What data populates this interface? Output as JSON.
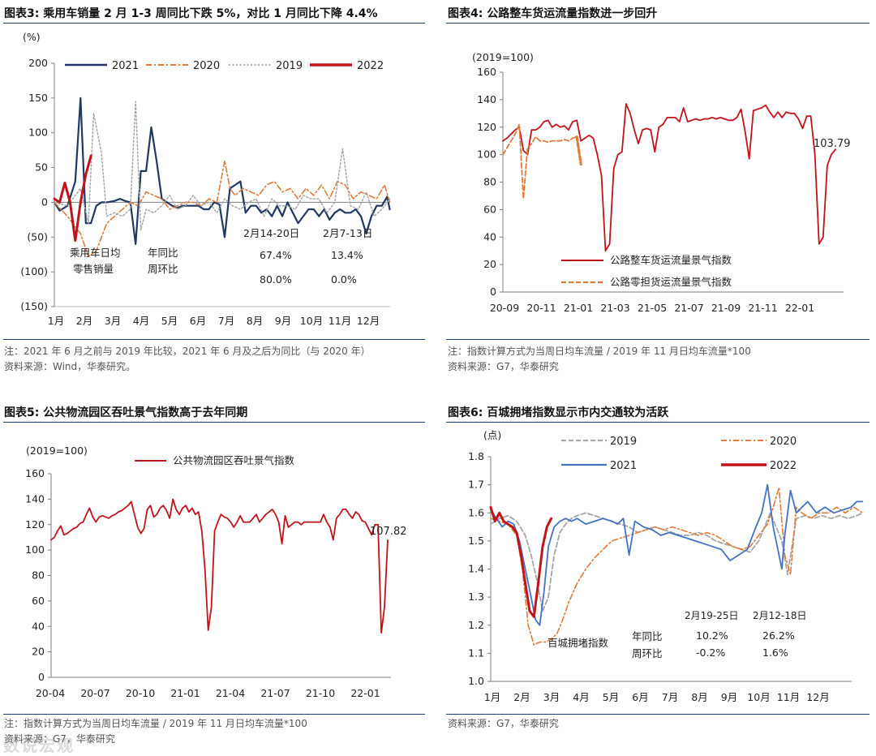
{
  "watermark": "数说宏观",
  "panels": [
    {
      "title": "图表3:  乘用车销量 2 月 1-3 周同比下跌 5%，对比 1 月同比下降 4.4%",
      "notes": [
        "注：2021 年 6 月之前与 2019 年比较，2021 年 6 月及之后为同比（与 2020 年）",
        "资料来源：Wind，华泰研究。"
      ]
    },
    {
      "title": "图表4:  公路整车货运流量指数进一步回升",
      "notes": [
        "注：指数计算方式为当周日均车流量  / 2019 年 11 月日均车流量*100",
        "资料来源：G7，华泰研究"
      ]
    },
    {
      "title": "图表5:  公共物流园区吞吐景气指数高于去年同期",
      "notes": [
        "注：指数计算方式为当周日均车流量  / 2019 年 11 月日均车流量*100",
        "资料来源：G7，华泰研究"
      ]
    },
    {
      "title": "图表6:  百城拥堵指数显示市内交通较为活跃",
      "notes": [
        "资料来源：G7，华泰研究"
      ]
    }
  ],
  "colors": {
    "c2021": "#1f3864",
    "c2020": "#e07b39",
    "c2019": "#a6a6a6",
    "c2022": "#c0141b",
    "red": "#c0141b",
    "orange": "#e07b39",
    "blue": "#4472c4",
    "gray": "#a6a6a6",
    "axis": "#7f7f7f",
    "rule": "#1c3d6e"
  },
  "chart_data": [
    {
      "type": "line",
      "unit": "(%)",
      "yticks": [
        "200",
        "150",
        "100",
        "50",
        "0",
        "(50)",
        "(100)",
        "(150)"
      ],
      "ylim": [
        -150,
        200
      ],
      "xticks": [
        "1月",
        "2月",
        "3月",
        "4月",
        "5月",
        "6月",
        "7月",
        "8月",
        "9月",
        "10月",
        "11月",
        "12月"
      ],
      "xlim": [
        0,
        13
      ],
      "legend": [
        "2021",
        "2020",
        "2019",
        "2022"
      ],
      "series": [
        {
          "name": "2021",
          "x": [
            0,
            0.2,
            0.5,
            0.8,
            1.0,
            1.2,
            1.4,
            1.6,
            1.8,
            2.0,
            2.3,
            2.5,
            2.7,
            2.9,
            3.1,
            3.3,
            3.5,
            3.7,
            3.9,
            4.1,
            4.3,
            4.5,
            4.7,
            4.9,
            5.1,
            5.3,
            5.5,
            5.7,
            5.9,
            6.1,
            6.3,
            6.5,
            6.7,
            6.9,
            7.1,
            7.3,
            7.5,
            7.7,
            7.9,
            8.1,
            8.3,
            8.5,
            8.7,
            8.9,
            9.1,
            9.3,
            9.5,
            9.7,
            9.9,
            10.1,
            10.3,
            10.5,
            10.7,
            10.9,
            11.1,
            11.3,
            11.5,
            11.7,
            11.9,
            12.1,
            12.3,
            12.5,
            12.7,
            12.8
          ],
          "values": [
            0,
            -12,
            -5,
            30,
            150,
            -30,
            -30,
            -5,
            0,
            0,
            2,
            5,
            2,
            0,
            -60,
            45,
            45,
            108,
            60,
            5,
            0,
            -5,
            -8,
            -5,
            -5,
            -5,
            -5,
            -10,
            -10,
            0,
            -3,
            -50,
            20,
            25,
            30,
            -15,
            -5,
            -5,
            -15,
            -10,
            -20,
            -5,
            -20,
            0,
            -15,
            -30,
            -20,
            -10,
            -10,
            -20,
            -10,
            -25,
            -15,
            -10,
            -15,
            -15,
            -10,
            -20,
            -45,
            -20,
            -5,
            -5,
            8,
            -10
          ]
        },
        {
          "name": "2020",
          "x": [
            0,
            0.5,
            1.0,
            1.3,
            1.6,
            1.8,
            2.0,
            2.3,
            2.6,
            2.9,
            3.2,
            3.5,
            3.8,
            4.1,
            4.4,
            4.7,
            5.0,
            5.3,
            5.6,
            5.9,
            6.2,
            6.5,
            6.7,
            6.9,
            7.2,
            7.5,
            7.8,
            8.1,
            8.4,
            8.7,
            9.0,
            9.3,
            9.6,
            9.9,
            10.2,
            10.5,
            10.8,
            11.1,
            11.4,
            11.7,
            12.0,
            12.3,
            12.6,
            12.8
          ],
          "values": [
            0,
            -20,
            -45,
            -78,
            -70,
            -50,
            -30,
            -20,
            -10,
            0,
            -5,
            15,
            10,
            5,
            -10,
            -5,
            0,
            0,
            -5,
            5,
            0,
            60,
            20,
            10,
            20,
            15,
            10,
            25,
            30,
            15,
            20,
            5,
            20,
            10,
            25,
            5,
            30,
            25,
            5,
            15,
            10,
            5,
            25,
            0
          ]
        },
        {
          "name": "2019",
          "x": [
            0,
            0.5,
            1.0,
            1.3,
            1.5,
            1.8,
            2.0,
            2.3,
            2.6,
            2.9,
            3.1,
            3.3,
            3.5,
            3.8,
            4.1,
            4.4,
            4.7,
            5.0,
            5.3,
            5.6,
            5.9,
            6.2,
            6.5,
            6.8,
            7.1,
            7.4,
            7.7,
            8.0,
            8.3,
            8.6,
            8.9,
            9.2,
            9.5,
            9.8,
            10.1,
            10.4,
            10.7,
            11.0,
            11.3,
            11.6,
            11.9,
            12.2,
            12.5,
            12.8
          ],
          "values": [
            0,
            -5,
            20,
            -30,
            128,
            70,
            -20,
            -15,
            -20,
            -10,
            145,
            -40,
            -10,
            -15,
            -5,
            10,
            -10,
            -5,
            10,
            -5,
            0,
            -15,
            5,
            -5,
            -10,
            0,
            5,
            -20,
            5,
            -5,
            -5,
            -10,
            10,
            5,
            5,
            -15,
            0,
            77,
            -5,
            -10,
            15,
            -20,
            -10,
            5
          ]
        },
        {
          "name": "2022",
          "x": [
            0,
            0.2,
            0.4,
            0.6,
            0.8,
            1.0,
            1.2,
            1.4
          ],
          "values": [
            5,
            0,
            28,
            0,
            -55,
            0,
            40,
            67
          ]
        }
      ],
      "annotations": {
        "retail": [
          "乘用车日均",
          "零售销量"
        ],
        "ratio": [
          "年同比",
          "周环比"
        ],
        "col1_head": "2月14-20日",
        "col2_head": "2月7-13日",
        "col1": [
          "67.4%",
          "80.0%"
        ],
        "col2": [
          "13.4%",
          "0.0%"
        ]
      }
    },
    {
      "type": "line",
      "unit": "(2019=100)",
      "yticks": [
        "160",
        "140",
        "120",
        "100",
        "80",
        "60",
        "40",
        "20",
        "0"
      ],
      "ylim": [
        0,
        160
      ],
      "xticks": [
        "20-09",
        "20-11",
        "21-01",
        "21-03",
        "21-05",
        "21-07",
        "21-09",
        "21-11",
        "22-01"
      ],
      "series": [
        {
          "name": "公路整车货运流量景气指数",
          "values": [
            110,
            112,
            115,
            118,
            120,
            103,
            100,
            118,
            118,
            120,
            124,
            125,
            120,
            122,
            120,
            121,
            118,
            124,
            125,
            110,
            112,
            114,
            112,
            100,
            85,
            30,
            35,
            90,
            100,
            102,
            137,
            130,
            118,
            108,
            118,
            119,
            118,
            102,
            120,
            122,
            127,
            127,
            127,
            124,
            134,
            124,
            125,
            126,
            125,
            126,
            126,
            127,
            126,
            127,
            126,
            125,
            125,
            127,
            133,
            117,
            97,
            132,
            133,
            134,
            136,
            131,
            127,
            131,
            127,
            131,
            130,
            130,
            126,
            119,
            128,
            128,
            100,
            35,
            40,
            92,
            100,
            103.79
          ]
        },
        {
          "name": "公路零担货运流量景气指数",
          "values": [
            100,
            105,
            110,
            115,
            122,
            68,
            105,
            108,
            113,
            110,
            110,
            109,
            110,
            110,
            110,
            111,
            110,
            112,
            113,
            93
          ]
        }
      ],
      "end_label": "103.79"
    },
    {
      "type": "line",
      "unit": "(2019=100)",
      "yticks": [
        "160",
        "140",
        "120",
        "100",
        "80",
        "60",
        "40",
        "20",
        "0"
      ],
      "ylim": [
        0,
        160
      ],
      "xticks": [
        "20-04",
        "20-07",
        "20-10",
        "21-01",
        "21-04",
        "21-07",
        "21-10",
        "22-01"
      ],
      "series": [
        {
          "name": "公共物流园区吞吐景气指数",
          "values": [
            108,
            110,
            115,
            119,
            112,
            113,
            115,
            117,
            118,
            121,
            122,
            128,
            133,
            126,
            122,
            126,
            127,
            126,
            125,
            127,
            128,
            130,
            131,
            133,
            135,
            138,
            128,
            118,
            113,
            117,
            132,
            135,
            126,
            128,
            133,
            135,
            131,
            125,
            140,
            132,
            128,
            133,
            135,
            130,
            133,
            128,
            130,
            115,
            85,
            37,
            55,
            115,
            122,
            128,
            126,
            125,
            122,
            118,
            122,
            127,
            122,
            122,
            122,
            125,
            128,
            122,
            125,
            128,
            130,
            132,
            128,
            122,
            105,
            127,
            118,
            120,
            122,
            122,
            120,
            122,
            122,
            122,
            122,
            122,
            122,
            128,
            122,
            118,
            108,
            125,
            128,
            132,
            132,
            128,
            125,
            130,
            128,
            123,
            122,
            117,
            112,
            120,
            120,
            35,
            55,
            107.82
          ]
        }
      ],
      "end_label": "107.82"
    },
    {
      "type": "line",
      "unit": "(点)",
      "yticks": [
        "1.8",
        "1.7",
        "1.6",
        "1.5",
        "1.4",
        "1.3",
        "1.2",
        "1.1",
        "1.0"
      ],
      "ylim": [
        1.0,
        1.8
      ],
      "xticks": [
        "1月",
        "2月",
        "3月",
        "4月",
        "5月",
        "6月",
        "7月",
        "8月",
        "9月",
        "10月",
        "11月",
        "12月"
      ],
      "xlim": [
        0,
        13
      ],
      "legend": [
        "2019",
        "2020",
        "2021",
        "2022"
      ],
      "series": [
        {
          "name": "2019",
          "x": [
            0,
            0.3,
            0.6,
            0.9,
            1.2,
            1.4,
            1.6,
            1.8,
            2.0,
            2.2,
            2.4,
            2.6,
            2.8,
            3.0,
            3.3,
            3.6,
            3.9,
            4.2,
            4.5,
            4.8,
            5.1,
            5.4,
            5.7,
            6.0,
            6.3,
            6.6,
            6.9,
            7.2,
            7.5,
            7.8,
            8.1,
            8.4,
            8.7,
            9.0,
            9.3,
            9.5,
            9.7,
            9.9,
            10.1,
            10.3,
            10.6,
            10.9,
            11.2,
            11.5,
            11.8,
            12.1,
            12.4,
            12.7,
            12.9
          ],
          "values": [
            1.56,
            1.58,
            1.59,
            1.57,
            1.52,
            1.45,
            1.36,
            1.25,
            1.3,
            1.45,
            1.53,
            1.56,
            1.58,
            1.59,
            1.6,
            1.59,
            1.58,
            1.57,
            1.56,
            1.55,
            1.53,
            1.54,
            1.55,
            1.54,
            1.53,
            1.52,
            1.52,
            1.53,
            1.52,
            1.5,
            1.49,
            1.48,
            1.47,
            1.46,
            1.5,
            1.55,
            1.6,
            1.55,
            1.5,
            1.38,
            1.58,
            1.59,
            1.58,
            1.59,
            1.58,
            1.59,
            1.58,
            1.59,
            1.6
          ]
        },
        {
          "name": "2020",
          "x": [
            0,
            0.3,
            0.6,
            0.9,
            1.1,
            1.3,
            1.5,
            1.7,
            1.9,
            2.1,
            2.3,
            2.5,
            2.7,
            3.0,
            3.3,
            3.6,
            3.9,
            4.2,
            4.5,
            4.8,
            5.1,
            5.4,
            5.7,
            6.0,
            6.3,
            6.6,
            6.9,
            7.2,
            7.5,
            7.8,
            8.1,
            8.4,
            8.7,
            9.0,
            9.3,
            9.6,
            9.8,
            10.0,
            10.2,
            10.4,
            10.6,
            10.8,
            11.1,
            11.4,
            11.7,
            12.0,
            12.3,
            12.6,
            12.9
          ],
          "values": [
            1.58,
            1.57,
            1.56,
            1.52,
            1.4,
            1.2,
            1.13,
            1.14,
            1.14,
            1.15,
            1.17,
            1.22,
            1.28,
            1.35,
            1.4,
            1.44,
            1.47,
            1.5,
            1.51,
            1.52,
            1.53,
            1.54,
            1.55,
            1.54,
            1.55,
            1.54,
            1.53,
            1.52,
            1.53,
            1.52,
            1.5,
            1.48,
            1.47,
            1.48,
            1.52,
            1.56,
            1.62,
            1.69,
            1.45,
            1.38,
            1.62,
            1.6,
            1.58,
            1.6,
            1.6,
            1.62,
            1.6,
            1.62,
            1.6
          ]
        },
        {
          "name": "2021",
          "x": [
            0,
            0.2,
            0.4,
            0.6,
            0.8,
            1.0,
            1.2,
            1.4,
            1.55,
            1.7,
            1.85,
            2.0,
            2.2,
            2.4,
            2.6,
            2.8,
            3.0,
            3.3,
            3.6,
            3.9,
            4.2,
            4.4,
            4.6,
            4.8,
            5.0,
            5.3,
            5.6,
            5.9,
            6.2,
            6.5,
            6.8,
            7.1,
            7.4,
            7.7,
            8.0,
            8.3,
            8.6,
            8.9,
            9.2,
            9.4,
            9.6,
            9.8,
            10.0,
            10.1,
            10.2,
            10.4,
            10.6,
            10.8,
            11.0,
            11.3,
            11.6,
            11.9,
            12.2,
            12.5,
            12.7,
            12.9
          ],
          "values": [
            1.61,
            1.58,
            1.55,
            1.57,
            1.56,
            1.5,
            1.4,
            1.3,
            1.22,
            1.2,
            1.32,
            1.48,
            1.55,
            1.57,
            1.58,
            1.57,
            1.58,
            1.56,
            1.57,
            1.58,
            1.57,
            1.56,
            1.58,
            1.45,
            1.57,
            1.55,
            1.54,
            1.52,
            1.53,
            1.52,
            1.51,
            1.5,
            1.49,
            1.48,
            1.47,
            1.43,
            1.45,
            1.47,
            1.55,
            1.6,
            1.7,
            1.55,
            1.45,
            1.4,
            1.52,
            1.68,
            1.6,
            1.62,
            1.64,
            1.6,
            1.62,
            1.6,
            1.61,
            1.62,
            1.64,
            1.64
          ]
        },
        {
          "name": "2022",
          "x": [
            0,
            0.15,
            0.3,
            0.45,
            0.6,
            0.75,
            0.9,
            1.05,
            1.2,
            1.35,
            1.5,
            1.65,
            1.8,
            1.95,
            2.1
          ],
          "values": [
            1.62,
            1.57,
            1.6,
            1.57,
            1.56,
            1.55,
            1.53,
            1.45,
            1.35,
            1.25,
            1.23,
            1.35,
            1.48,
            1.55,
            1.58
          ]
        }
      ],
      "annotations": {
        "index_label": "百城拥堵指数",
        "ratio": [
          "年同比",
          "周环比"
        ],
        "col1_head": "2月19-25日",
        "col2_head": "2月12-18日",
        "col1": [
          "10.2%",
          "-0.2%"
        ],
        "col2": [
          "26.2%",
          "1.6%"
        ]
      }
    }
  ]
}
